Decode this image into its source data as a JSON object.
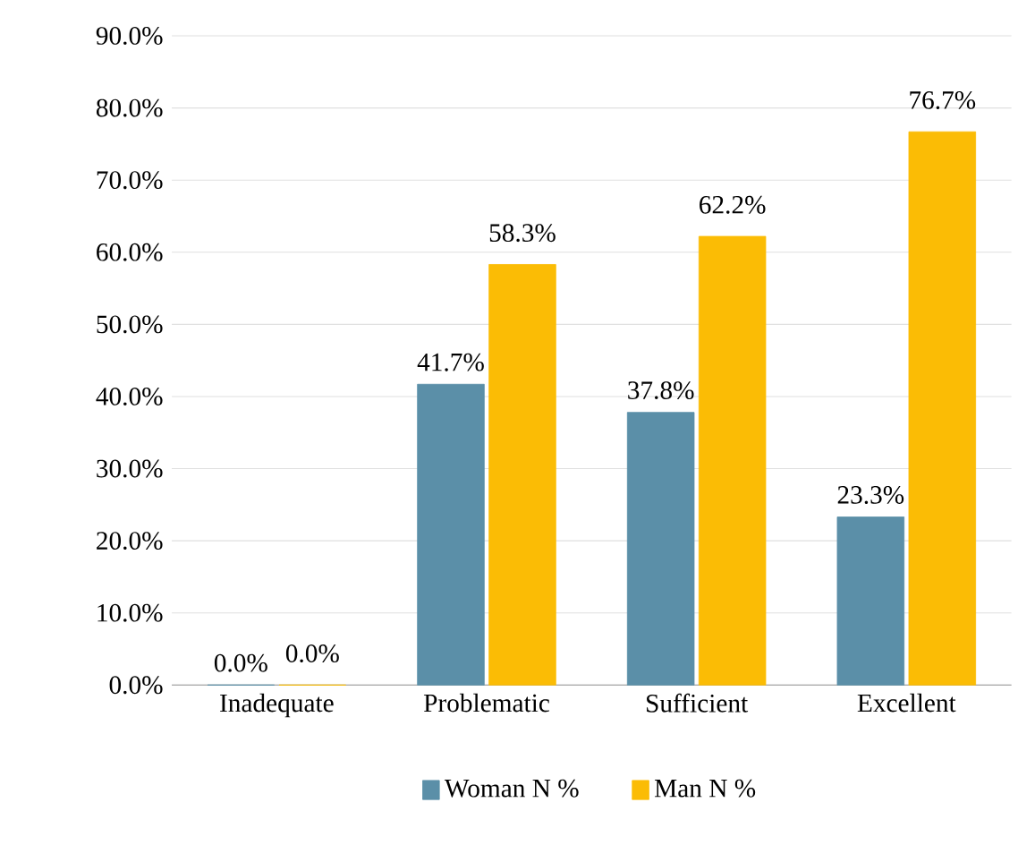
{
  "chart_data": {
    "type": "bar",
    "categories": [
      "Inadequate",
      "Problematic",
      "Sufficient",
      "Excellent"
    ],
    "series": [
      {
        "name": "Woman  N %",
        "color": "#5b8fa8",
        "values": [
          0,
          41.7,
          37.8,
          23.3
        ],
        "value_labels": [
          "0.0%",
          "41.7%",
          "37.8%",
          "23.3%"
        ]
      },
      {
        "name": "Man  N %",
        "color": "#fbbc05",
        "values": [
          0,
          58.3,
          62.2,
          76.7
        ],
        "value_labels": [
          "0.0%",
          "58.3%",
          "62.2%",
          "76.7%"
        ]
      }
    ],
    "ylim": [
      0,
      90
    ],
    "yticks": [
      {
        "value": 0,
        "label": "0.0%"
      },
      {
        "value": 10,
        "label": "10.0%"
      },
      {
        "value": 20,
        "label": "20.0%"
      },
      {
        "value": 30,
        "label": "30.0%"
      },
      {
        "value": 40,
        "label": "40.0%"
      },
      {
        "value": 50,
        "label": "50.0%"
      },
      {
        "value": 60,
        "label": "60.0%"
      },
      {
        "value": 70,
        "label": "70.0%"
      },
      {
        "value": 80,
        "label": "80.0%"
      },
      {
        "value": 90,
        "label": "90.0%"
      }
    ],
    "grid": "y",
    "legend": "bottom"
  }
}
